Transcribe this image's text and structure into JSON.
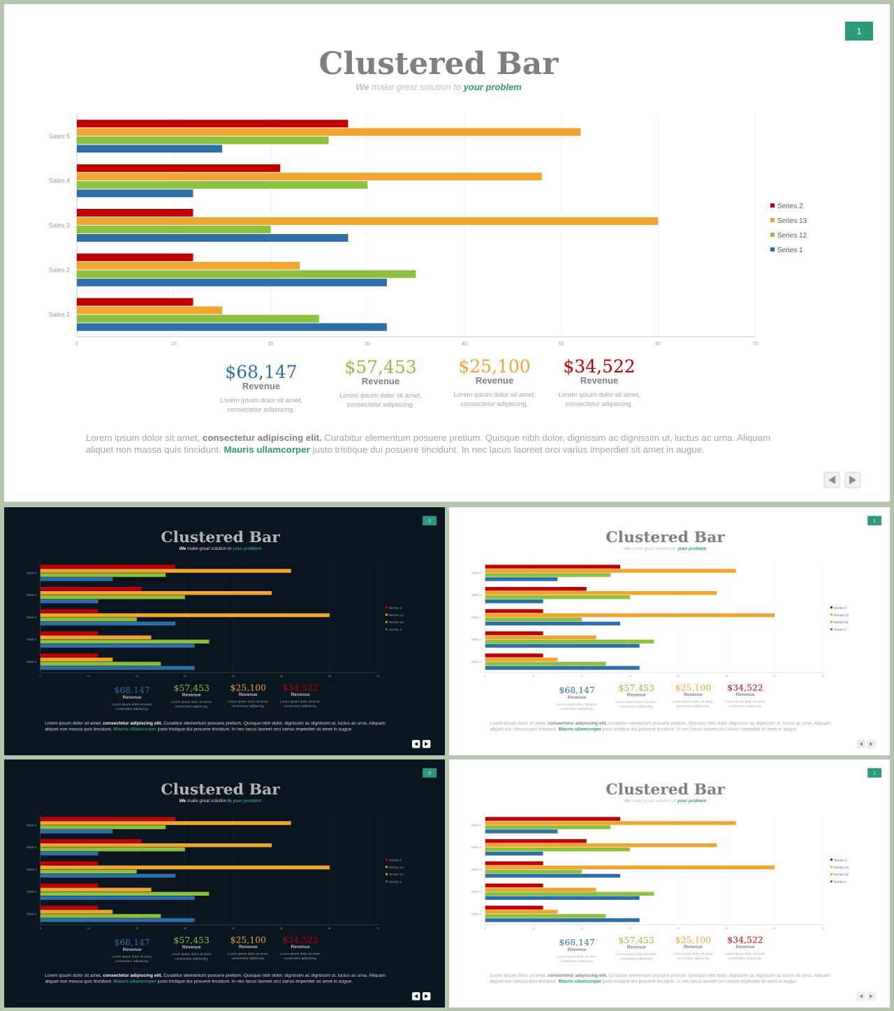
{
  "slides": [
    {
      "theme": "light",
      "page_number": "1"
    },
    {
      "theme": "dark",
      "page_number": "2"
    },
    {
      "theme": "light",
      "page_number": "1"
    },
    {
      "theme": "dark",
      "page_number": "2"
    },
    {
      "theme": "light",
      "page_number": "1"
    }
  ],
  "header": {
    "title": "Clustered Bar",
    "subtitle_we": "We",
    "subtitle_mid": "make great solution to",
    "subtitle_accent": "your problem"
  },
  "stats": [
    {
      "value": "$68,147",
      "label": "Revenue",
      "desc1": "Lorem ipsum dolor sit amet,",
      "desc2": "consectetur adipiscing.",
      "color": "#2e6fa6"
    },
    {
      "value": "$57,453",
      "label": "Revenue",
      "desc1": "Lorem ipsum dolor sit amet,",
      "desc2": "consectetur adipiscing.",
      "color": "#8dc03f"
    },
    {
      "value": "$25,100",
      "label": "Revenue",
      "desc1": "Lorem ipsum dolor sit amet,",
      "desc2": "consectetur adipiscing.",
      "color": "#f0a531"
    },
    {
      "value": "$34,522",
      "label": "Revenue",
      "desc1": "Lorem ipsum dolor sit amet,",
      "desc2": "consectetur adipiscing.",
      "color": "#c00000"
    }
  ],
  "body_text": {
    "p1": "Lorem ipsum dolor sit amet, ",
    "b1": "consectetur adipiscing elit.",
    "p2": " Curabitur elementum posuere pretium. Quisque nibh dolor, dignissim ac dignissim ut, luctus ac urna. Aliquam",
    "p3": "aliquet non massa quis tincidunt. ",
    "b2": "Mauris ullamcorper",
    "p4": " justo tristique dui posuere tincidunt. In nec lacus laoreet orci varius imperdiet sit amet in augue."
  },
  "nav": {
    "prev_icon": "prev-arrow-icon",
    "next_icon": "next-arrow-icon"
  },
  "colors": {
    "accent": "#2a9a76",
    "page_badge": "#2e9a7c",
    "title_gray": "#7f7f7f",
    "series2": "#c00000",
    "series13": "#f0a531",
    "series12": "#8dc03f",
    "series1": "#2e6fa6"
  },
  "chart_data": {
    "type": "bar",
    "orientation": "horizontal",
    "categories": [
      "Sales 1",
      "Sales 2",
      "Sales 3",
      "Sales 4",
      "Sales 5"
    ],
    "series": [
      {
        "name": "Series 2",
        "color": "#c00000",
        "values": [
          12,
          12,
          12,
          21,
          28
        ]
      },
      {
        "name": "Series 13",
        "color": "#f0a531",
        "values": [
          15,
          23,
          60,
          48,
          52
        ]
      },
      {
        "name": "Series 12",
        "color": "#8dc03f",
        "values": [
          25,
          35,
          20,
          30,
          26
        ]
      },
      {
        "name": "Series 1",
        "color": "#2e6fa6",
        "values": [
          32,
          32,
          28,
          12,
          15
        ]
      }
    ],
    "xticks": [
      0,
      10,
      20,
      30,
      40,
      50,
      60,
      70
    ],
    "xlim": [
      0,
      70
    ],
    "grid": true,
    "legend_position": "right"
  }
}
